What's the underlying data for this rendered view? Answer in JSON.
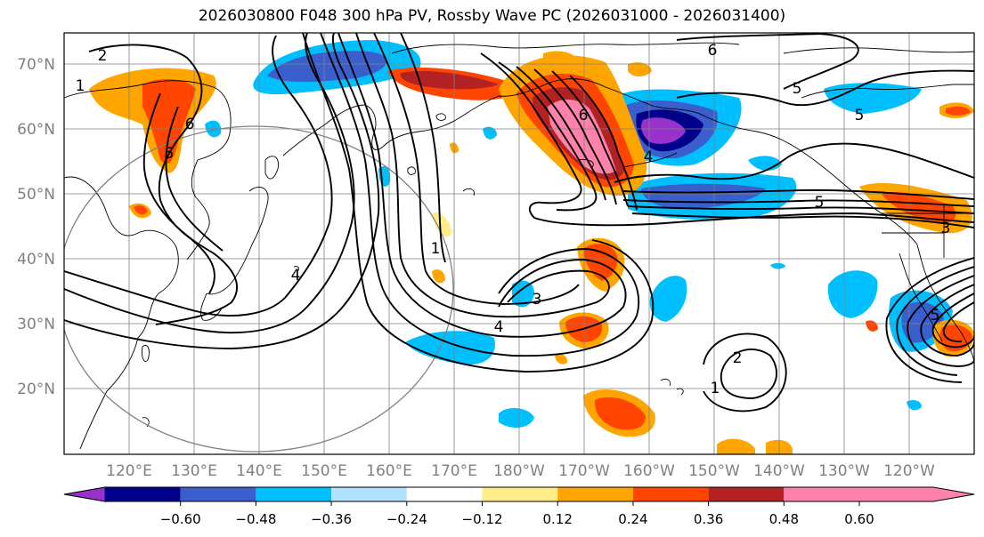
{
  "title": "2026030800 F048 300 hPa PV, Rossby Wave PC (2026031000 - 2026031400)",
  "map": {
    "lat_labels": [
      "70°N",
      "60°N",
      "50°N",
      "40°N",
      "30°N",
      "20°N"
    ],
    "lon_labels": [
      "120°E",
      "130°E",
      "140°E",
      "150°E",
      "160°E",
      "170°E",
      "180°W",
      "170°W",
      "160°W",
      "150°W",
      "140°W",
      "130°W",
      "120°W"
    ],
    "contour_labels": [
      "2",
      "1",
      "6",
      "5",
      "6",
      "5",
      "5",
      "6",
      "5",
      "4",
      "1",
      "4",
      "3",
      "4",
      "2",
      "1",
      "5",
      "3"
    ]
  },
  "colorbar": {
    "ticks": [
      "−0.60",
      "−0.48",
      "−0.36",
      "−0.24",
      "−0.12",
      "0.12",
      "0.24",
      "0.36",
      "0.48",
      "0.60"
    ],
    "colors": [
      "#9932cc",
      "#00008b",
      "#3a5fcd",
      "#00bfff",
      "#b0e2ff",
      "#ffffff",
      "#ffec8b",
      "#ffa500",
      "#ff4500",
      "#b22222",
      "#ff82ab"
    ]
  }
}
